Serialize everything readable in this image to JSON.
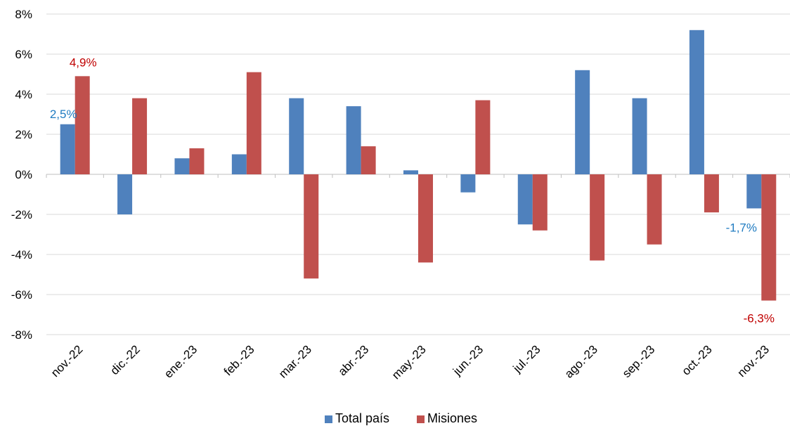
{
  "chart_data": {
    "type": "bar",
    "categories": [
      "nov.-22",
      "dic.-22",
      "ene.-23",
      "feb.-23",
      "mar.-23",
      "abr.-23",
      "may.-23",
      "jun.-23",
      "jul.-23",
      "ago.-23",
      "sep.-23",
      "oct.-23",
      "nov.-23"
    ],
    "series": [
      {
        "name": "Total país",
        "color": "#4f81bd",
        "values": [
          2.5,
          -2.0,
          0.8,
          1.0,
          3.8,
          3.4,
          0.2,
          -0.9,
          -2.5,
          5.2,
          3.8,
          7.2,
          -1.7
        ]
      },
      {
        "name": "Misiones",
        "color": "#c0504d",
        "values": [
          4.9,
          3.8,
          1.3,
          5.1,
          -5.2,
          1.4,
          -4.4,
          3.7,
          -2.8,
          -4.3,
          -3.5,
          -1.9,
          -6.3
        ]
      }
    ],
    "ylim": [
      -8,
      8
    ],
    "yticks": [
      -8,
      -6,
      -4,
      -2,
      0,
      2,
      4,
      6,
      8
    ],
    "ytick_labels": [
      "-8%",
      "-6%",
      "-4%",
      "-2%",
      "0%",
      "2%",
      "4%",
      "6%",
      "8%"
    ],
    "grid": true,
    "legend_position": "bottom",
    "data_labels": [
      {
        "series": 0,
        "index": 0,
        "text": "2,5%",
        "color": "#1f7bc1"
      },
      {
        "series": 1,
        "index": 0,
        "text": "4,9%",
        "color": "#c00000"
      },
      {
        "series": 0,
        "index": 12,
        "text": "-1,7%",
        "color": "#1f7bc1"
      },
      {
        "series": 1,
        "index": 12,
        "text": "-6,3%",
        "color": "#c00000"
      }
    ]
  }
}
